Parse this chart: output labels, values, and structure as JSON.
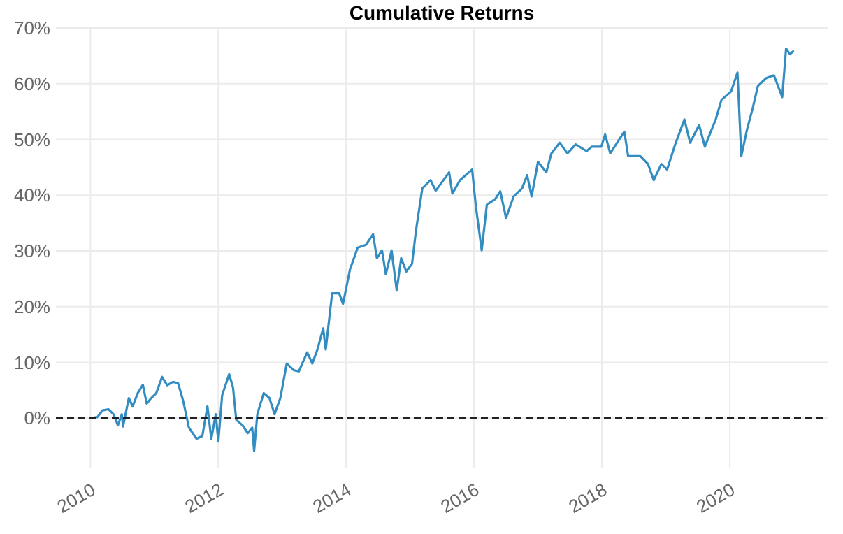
{
  "chart_data": {
    "type": "line",
    "title": "Cumulative Returns",
    "x": [
      2010.0,
      2010.11,
      2010.19,
      2010.28,
      2010.36,
      2010.43,
      2010.49,
      2010.51,
      2010.6,
      2010.66,
      2010.74,
      2010.82,
      2010.88,
      2010.95,
      2011.03,
      2011.12,
      2011.2,
      2011.29,
      2011.37,
      2011.45,
      2011.54,
      2011.66,
      2011.75,
      2011.83,
      2011.89,
      2011.96,
      2012.0,
      2012.06,
      2012.17,
      2012.23,
      2012.28,
      2012.38,
      2012.46,
      2012.53,
      2012.56,
      2012.61,
      2012.71,
      2012.8,
      2012.88,
      2012.97,
      2013.07,
      2013.18,
      2013.26,
      2013.39,
      2013.47,
      2013.55,
      2013.64,
      2013.68,
      2013.78,
      2013.89,
      2013.95,
      2014.06,
      2014.18,
      2014.31,
      2014.42,
      2014.48,
      2014.56,
      2014.62,
      2014.71,
      2014.79,
      2014.86,
      2014.94,
      2015.03,
      2015.09,
      2015.19,
      2015.32,
      2015.4,
      2015.61,
      2015.66,
      2015.78,
      2015.97,
      2016.03,
      2016.12,
      2016.2,
      2016.33,
      2016.41,
      2016.5,
      2016.62,
      2016.75,
      2016.83,
      2016.9,
      2017.0,
      2017.13,
      2017.21,
      2017.34,
      2017.46,
      2017.59,
      2017.76,
      2017.84,
      2017.99,
      2018.05,
      2018.13,
      2018.35,
      2018.41,
      2018.6,
      2018.72,
      2018.81,
      2018.93,
      2019.02,
      2019.14,
      2019.29,
      2019.38,
      2019.52,
      2019.61,
      2019.78,
      2019.87,
      2020.02,
      2020.12,
      2020.18,
      2020.27,
      2020.36,
      2020.44,
      2020.57,
      2020.69,
      2020.82,
      2020.88,
      2020.94,
      2020.99
    ],
    "series": [
      {
        "color": "#348dc1",
        "values": [
          0,
          0.2,
          1.4,
          1.6,
          0.7,
          -1.3,
          0.7,
          -1.5,
          3.6,
          2.1,
          4.5,
          6.0,
          2.6,
          3.6,
          4.5,
          7.4,
          5.9,
          6.5,
          6.3,
          3.1,
          -1.7,
          -3.7,
          -3.2,
          2.1,
          -3.7,
          0.7,
          -4.2,
          4.1,
          7.9,
          5.5,
          -0.3,
          -1.3,
          -2.7,
          -1.7,
          -5.9,
          0.7,
          4.5,
          3.6,
          0.7,
          3.6,
          9.8,
          8.6,
          8.4,
          11.8,
          9.8,
          12.3,
          16.1,
          12.3,
          22.4,
          22.4,
          20.5,
          26.7,
          30.6,
          31.1,
          33.0,
          28.7,
          30.1,
          25.8,
          30.1,
          22.9,
          28.7,
          26.3,
          27.7,
          33.5,
          41.2,
          42.7,
          40.8,
          44.1,
          40.3,
          42.7,
          44.6,
          37.8,
          30.1,
          38.3,
          39.3,
          40.7,
          35.9,
          39.8,
          41.2,
          43.6,
          39.8,
          46.0,
          44.1,
          47.5,
          49.4,
          47.5,
          49.1,
          47.9,
          48.7,
          48.7,
          50.9,
          47.5,
          51.4,
          47.0,
          47.0,
          45.6,
          42.7,
          45.6,
          44.6,
          48.9,
          53.6,
          49.4,
          52.6,
          48.7,
          53.6,
          57.1,
          58.6,
          62.0,
          47.0,
          51.8,
          55.7,
          59.6,
          61.0,
          61.5,
          57.6,
          66.3,
          65.3,
          65.8
        ]
      }
    ],
    "xlim": [
      2009.46,
      2021.53
    ],
    "xticks": [
      2010,
      2012,
      2014,
      2016,
      2018,
      2020
    ],
    "ylim": [
      -9,
      70
    ],
    "yticks": [
      {
        "value": 0,
        "label": "0%"
      },
      {
        "value": 10,
        "label": "10%"
      },
      {
        "value": 20,
        "label": "20%"
      },
      {
        "value": 30,
        "label": "30%"
      },
      {
        "value": 40,
        "label": "40%"
      },
      {
        "value": 50,
        "label": "50%"
      },
      {
        "value": 60,
        "label": "60%"
      },
      {
        "value": 70,
        "label": "70%"
      }
    ],
    "grid": true,
    "marker": "none",
    "line_style": "solid",
    "ref_lines": [
      {
        "axis": "y",
        "value": 0,
        "color": "#222222",
        "line_style": "dashed"
      }
    ]
  }
}
